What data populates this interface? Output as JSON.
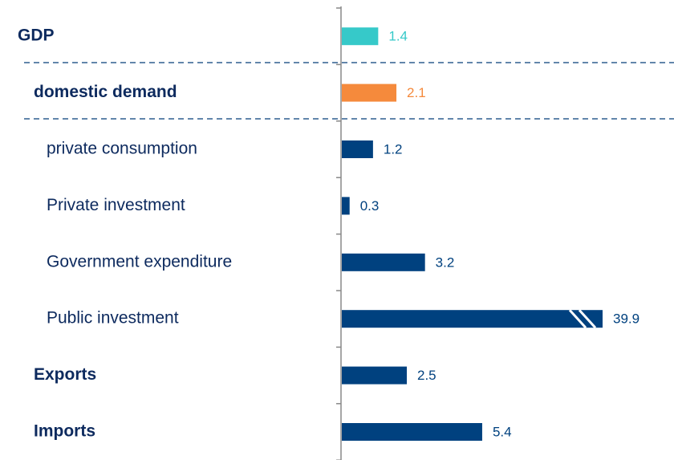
{
  "chart_data": {
    "type": "bar",
    "orientation": "horizontal",
    "categories": [
      "GDP",
      "domestic demand",
      "private consumption",
      "Private investment",
      "Government expenditure",
      "Public investment",
      "Exports",
      "Imports"
    ],
    "values": [
      1.4,
      2.1,
      1.2,
      0.3,
      3.2,
      39.9,
      2.5,
      5.4
    ],
    "colors": [
      "#36c9c9",
      "#f58a3c",
      "#00417f",
      "#00417f",
      "#00417f",
      "#00417f",
      "#00417f",
      "#00417f"
    ]
  }
}
